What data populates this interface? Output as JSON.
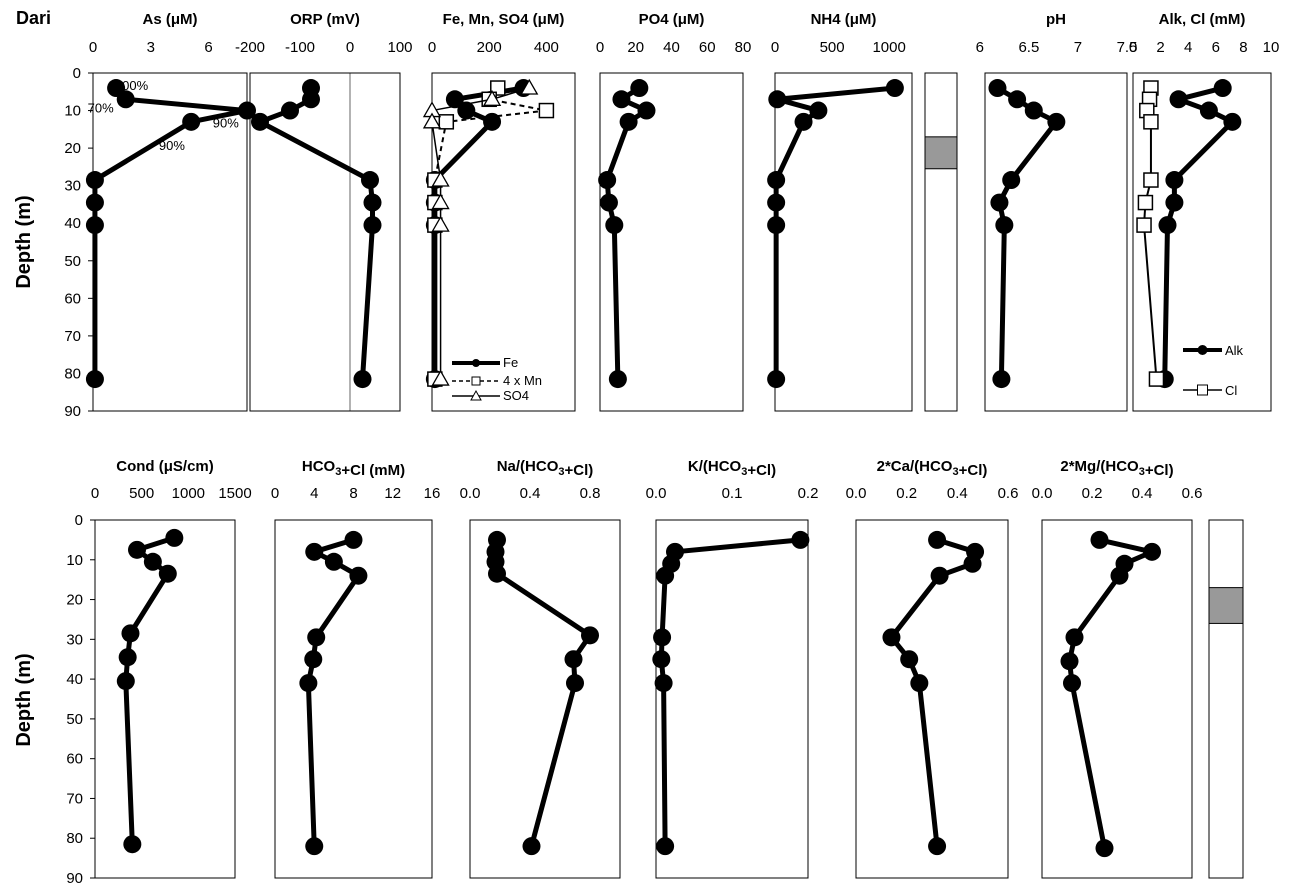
{
  "site_label": "Dari",
  "y_axis": {
    "label": "Depth (m)",
    "ticks": [
      0,
      10,
      20,
      30,
      40,
      50,
      60,
      70,
      80,
      90
    ],
    "lim": [
      0,
      90
    ]
  },
  "colors": {
    "marker": "#000000",
    "clay_fill": "#999999",
    "open_marker": "#ffffff"
  },
  "chart_data": [
    {
      "type": "line",
      "title": "As (μM)",
      "xticks": [
        "0",
        "3",
        "6"
      ],
      "xlim": [
        0,
        8
      ],
      "xtick_values": [
        0,
        3,
        6
      ],
      "series": [
        {
          "marker": "filled-circle",
          "line": "solid-thick",
          "x": [
            1.2,
            1.7,
            8.0,
            5.1,
            0.1,
            0.1,
            0.1,
            0.1
          ],
          "y": [
            4,
            7,
            10,
            13,
            28.5,
            34.5,
            40.5,
            81.5
          ]
        }
      ],
      "annotations": [
        {
          "text": "100%",
          "x": 2.0,
          "y": 4.5
        },
        {
          "text": "70%",
          "x": 0.4,
          "y": 10.5
        },
        {
          "text": "90%",
          "x": 6.9,
          "y": 14.5
        },
        {
          "text": "90%",
          "x": 4.1,
          "y": 20.5
        }
      ]
    },
    {
      "type": "line",
      "title": "ORP (mV)",
      "xticks": [
        "-200",
        "-100",
        "0",
        "100"
      ],
      "xlim": [
        -200,
        100
      ],
      "xtick_values": [
        -200,
        -100,
        0,
        100
      ],
      "series": [
        {
          "marker": "filled-circle",
          "line": "solid-thick",
          "x": [
            -78,
            -78,
            -120,
            -180,
            40,
            45,
            45,
            25
          ],
          "y": [
            4,
            7,
            10,
            13,
            28.5,
            34.5,
            40.5,
            81.5
          ]
        }
      ]
    },
    {
      "type": "line",
      "title": "Fe, Mn, SO4 (μM)",
      "xticks": [
        "0",
        "200",
        "400"
      ],
      "xlim": [
        0,
        500
      ],
      "xtick_values": [
        0,
        200,
        400
      ],
      "legend": [
        "Fe",
        "4 x Mn",
        "SO4"
      ],
      "series": [
        {
          "name": "Fe",
          "marker": "filled-circle",
          "line": "solid-thick",
          "x": [
            320,
            80,
            120,
            210,
            10,
            10,
            10,
            10
          ],
          "y": [
            4,
            7,
            10,
            13,
            28.5,
            34.5,
            40.5,
            81.5
          ]
        },
        {
          "name": "4 x Mn",
          "marker": "open-square",
          "line": "dashed",
          "x": [
            230,
            200,
            400,
            50,
            10,
            10,
            10,
            10
          ],
          "y": [
            4,
            7,
            10,
            13,
            28.5,
            34.5,
            40.5,
            81.5
          ]
        },
        {
          "name": "SO4",
          "marker": "open-triangle",
          "line": "thin",
          "x": [
            340,
            210,
            0,
            0,
            30,
            30,
            30,
            30
          ],
          "y": [
            4,
            7,
            10,
            13,
            28.5,
            34.5,
            40.5,
            81.5
          ]
        }
      ]
    },
    {
      "type": "line",
      "title": "PO4 (μM)",
      "xticks": [
        "0",
        "20",
        "40",
        "60",
        "80"
      ],
      "xlim": [
        0,
        80
      ],
      "xtick_values": [
        0,
        20,
        40,
        60,
        80
      ],
      "series": [
        {
          "marker": "filled-circle",
          "line": "solid-thick",
          "x": [
            22,
            12,
            26,
            16,
            4,
            5,
            8,
            10
          ],
          "y": [
            4,
            7,
            10,
            13,
            28.5,
            34.5,
            40.5,
            81.5
          ]
        }
      ]
    },
    {
      "type": "line",
      "title": "NH4 (μM)",
      "xticks": [
        "0",
        "500",
        "1000"
      ],
      "xlim": [
        0,
        1200
      ],
      "xtick_values": [
        0,
        500,
        1000
      ],
      "series": [
        {
          "marker": "filled-circle",
          "line": "solid-thick",
          "x": [
            1050,
            20,
            380,
            250,
            10,
            10,
            10,
            10
          ],
          "y": [
            4,
            7,
            10,
            13,
            28.5,
            34.5,
            40.5,
            81.5
          ]
        }
      ]
    },
    {
      "type": "column",
      "xticks": [],
      "shaded_depth": [
        17,
        25.5
      ]
    },
    {
      "type": "line",
      "title": "pH",
      "xticks": [
        "6",
        "6.5",
        "7",
        "7.5"
      ],
      "xlim": [
        5.9,
        7.5
      ],
      "xtick_values": [
        6,
        6.5,
        7,
        7.5
      ],
      "series": [
        {
          "marker": "filled-circle",
          "line": "solid-thick",
          "x": [
            6.18,
            6.38,
            6.55,
            6.78,
            6.32,
            6.2,
            6.25,
            6.22
          ],
          "y": [
            4,
            7,
            10,
            13,
            28.5,
            34.5,
            40.5,
            81.5
          ]
        }
      ]
    },
    {
      "type": "line",
      "title": "Alk, Cl (mM)",
      "xticks": [
        "0",
        "2",
        "4",
        "6",
        "8",
        "10"
      ],
      "xlim": [
        0,
        10
      ],
      "xtick_values": [
        0,
        2,
        4,
        6,
        8,
        10
      ],
      "legend": [
        "Alk",
        "Cl"
      ],
      "series": [
        {
          "name": "Alk",
          "marker": "filled-circle",
          "line": "solid-thick",
          "x": [
            6.5,
            3.3,
            5.5,
            7.2,
            3.0,
            3.0,
            2.5,
            2.3
          ],
          "y": [
            4,
            7,
            10,
            13,
            28.5,
            34.5,
            40.5,
            81.5
          ]
        },
        {
          "name": "Cl",
          "marker": "open-square",
          "line": "solid-thin",
          "x": [
            1.3,
            1.2,
            1.0,
            1.3,
            1.3,
            0.9,
            0.8,
            1.7
          ],
          "y": [
            4,
            7,
            10,
            13,
            28.5,
            34.5,
            40.5,
            81.5
          ]
        }
      ]
    },
    {
      "type": "line",
      "title": "Cond (μS/cm)",
      "xticks": [
        "0",
        "500",
        "1000",
        "1500"
      ],
      "xlim": [
        0,
        1500
      ],
      "xtick_values": [
        0,
        500,
        1000,
        1500
      ],
      "series": [
        {
          "marker": "filled-circle",
          "line": "solid-thick",
          "x": [
            850,
            450,
            620,
            780,
            380,
            350,
            330,
            400
          ],
          "y": [
            4.5,
            7.5,
            10.5,
            13.5,
            28.5,
            34.5,
            40.5,
            81.5
          ]
        }
      ]
    },
    {
      "type": "line",
      "title": "HCO3+Cl (mM)",
      "xticks": [
        "0",
        "4",
        "8",
        "12",
        "16"
      ],
      "xlim": [
        0,
        16
      ],
      "xtick_values": [
        0,
        4,
        8,
        12,
        16
      ],
      "series": [
        {
          "marker": "filled-circle",
          "line": "solid-thick",
          "x": [
            8.0,
            4.0,
            6.0,
            8.5,
            4.2,
            3.9,
            3.4,
            4.0
          ],
          "y": [
            5,
            8,
            10.5,
            14,
            29.5,
            35,
            41,
            82
          ]
        }
      ]
    },
    {
      "type": "line",
      "title": "Na/(HCO3+Cl)",
      "xticks": [
        "0.0",
        "0.4",
        "0.8"
      ],
      "xlim": [
        0,
        1.0
      ],
      "xtick_values": [
        0,
        0.4,
        0.8
      ],
      "series": [
        {
          "marker": "filled-circle",
          "line": "solid-thick",
          "x": [
            0.18,
            0.17,
            0.17,
            0.18,
            0.8,
            0.69,
            0.7,
            0.41
          ],
          "y": [
            5,
            8,
            10.5,
            13.5,
            29,
            35,
            41,
            82
          ]
        }
      ]
    },
    {
      "type": "line",
      "title": "K/(HCO3+Cl)",
      "xticks": [
        "0.0",
        "0.1",
        "0.2"
      ],
      "xlim": [
        0,
        0.2
      ],
      "xtick_values": [
        0,
        0.1,
        0.2
      ],
      "series": [
        {
          "marker": "filled-circle",
          "line": "solid-thick",
          "x": [
            0.19,
            0.025,
            0.02,
            0.012,
            0.008,
            0.007,
            0.01,
            0.012
          ],
          "y": [
            5,
            8,
            11,
            14,
            29.5,
            35,
            41,
            82
          ]
        }
      ]
    },
    {
      "type": "line",
      "title": "2*Ca/(HCO3+Cl)",
      "xticks": [
        "0.0",
        "0.2",
        "0.4",
        "0.6"
      ],
      "xlim": [
        0,
        0.6
      ],
      "xtick_values": [
        0,
        0.2,
        0.4,
        0.6
      ],
      "series": [
        {
          "marker": "filled-circle",
          "line": "solid-thick",
          "x": [
            0.32,
            0.47,
            0.46,
            0.33,
            0.14,
            0.21,
            0.25,
            0.32
          ],
          "y": [
            5,
            8,
            11,
            14,
            29.5,
            35,
            41,
            82
          ]
        }
      ]
    },
    {
      "type": "line",
      "title": "2*Mg/(HCO3+Cl)",
      "xticks": [
        "0.0",
        "0.2",
        "0.4",
        "0.6"
      ],
      "xlim": [
        0,
        0.6
      ],
      "xtick_values": [
        0,
        0.2,
        0.4,
        0.6
      ],
      "series": [
        {
          "marker": "filled-circle",
          "line": "solid-thick",
          "x": [
            0.23,
            0.44,
            0.33,
            0.31,
            0.13,
            0.11,
            0.12,
            0.25
          ],
          "y": [
            5,
            8,
            11,
            14,
            29.5,
            35.5,
            41,
            82.5
          ]
        }
      ]
    },
    {
      "type": "column",
      "xticks": [],
      "shaded_depth": [
        17,
        26
      ]
    }
  ]
}
